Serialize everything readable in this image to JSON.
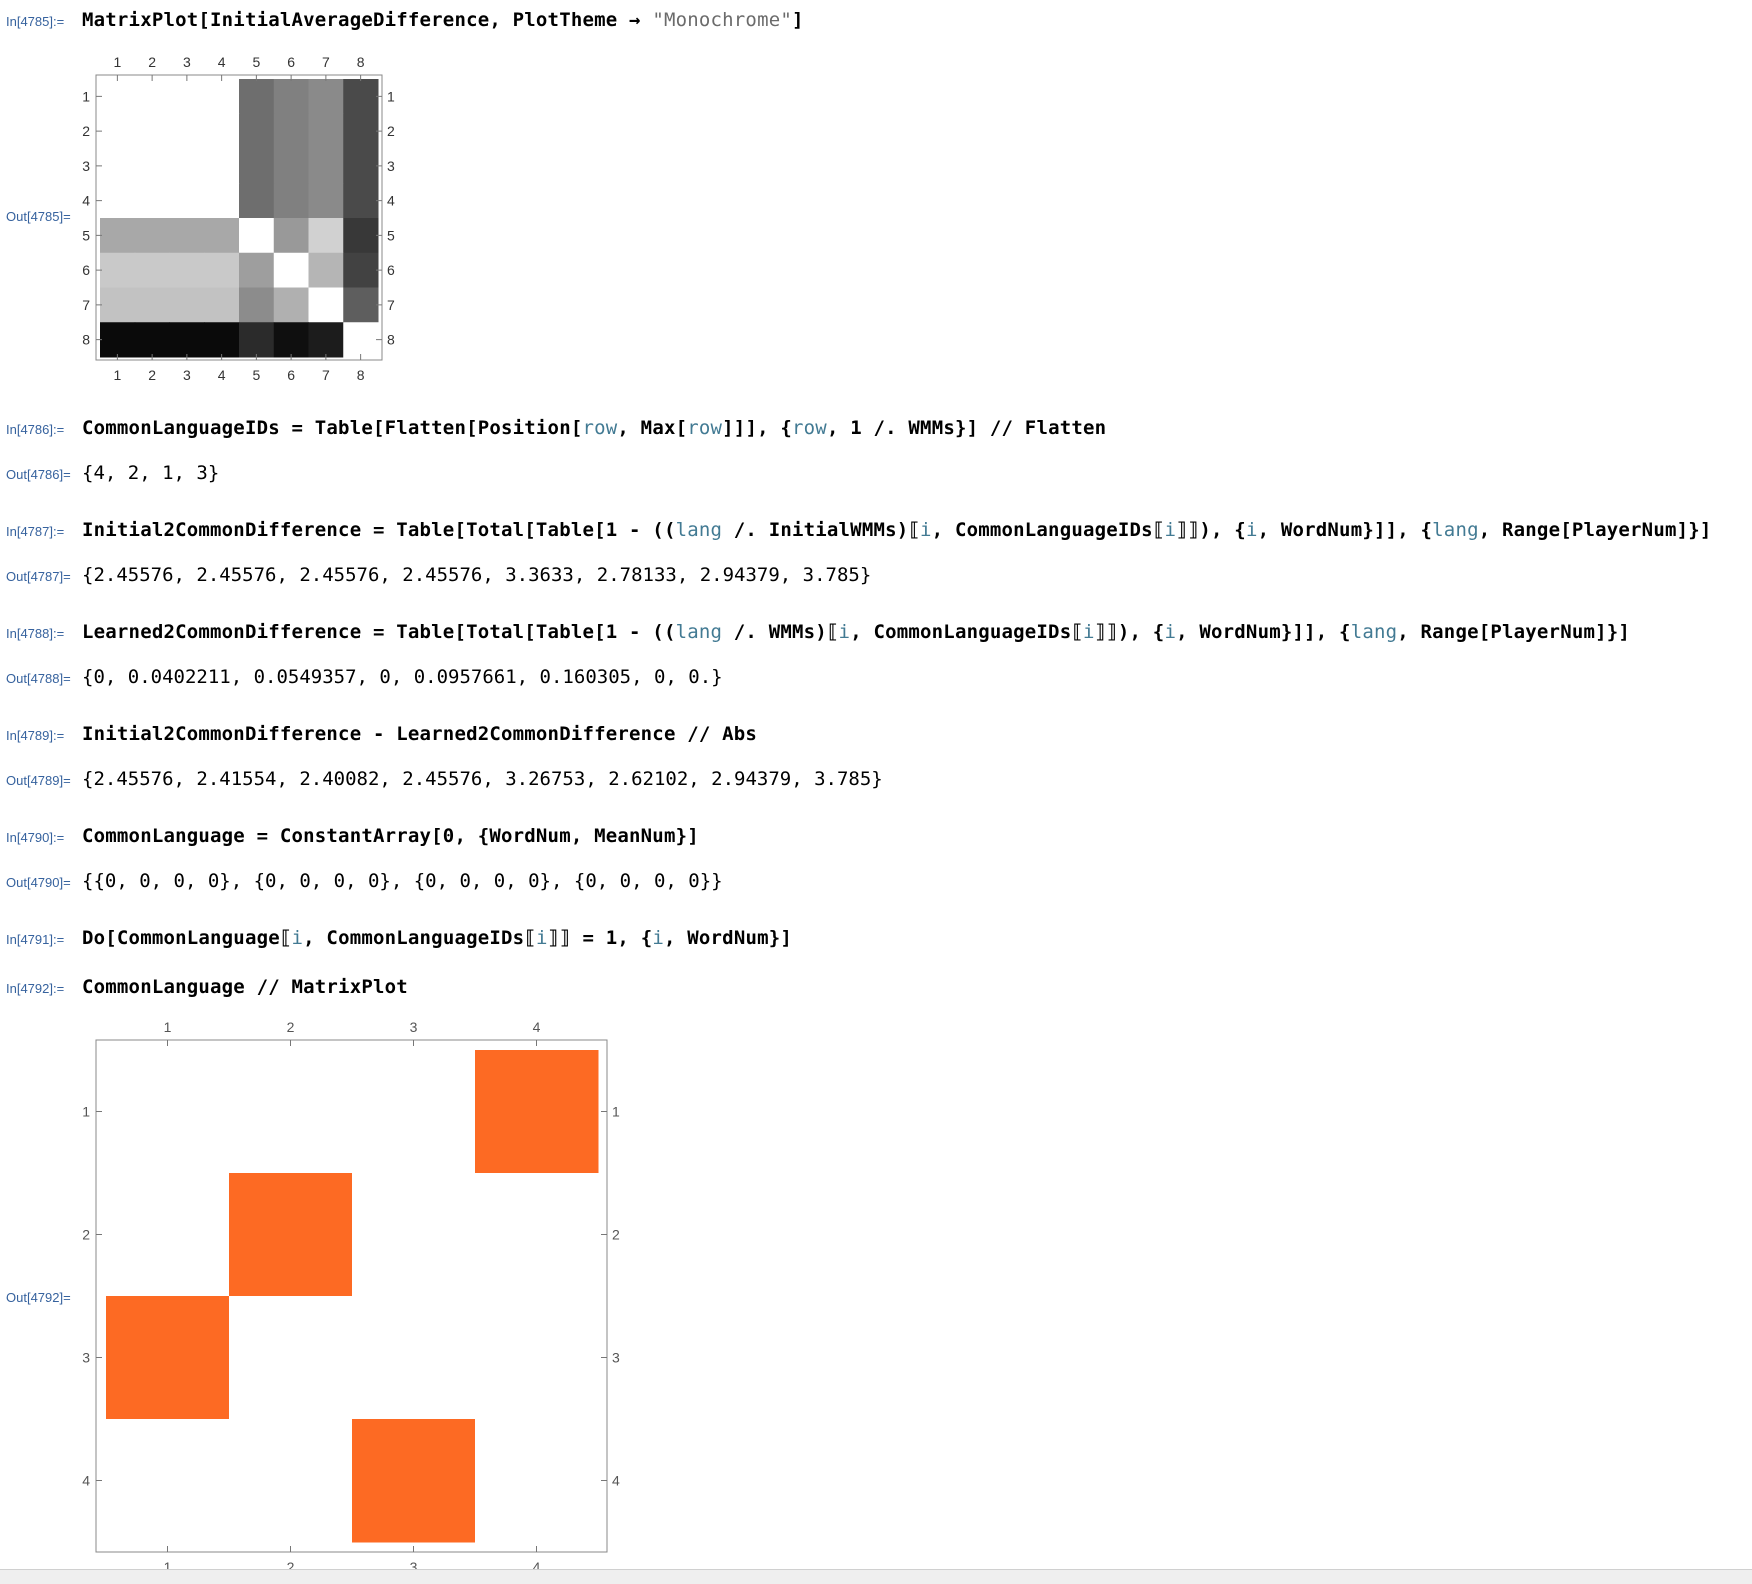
{
  "cells": [
    {
      "in_label": "In[4785]:=",
      "code": [
        {
          "t": "MatrixPlot[InitialAverageDifference, PlotTheme → "
        },
        {
          "t": "\"Monochrome\"",
          "s": 1
        },
        {
          "t": "]"
        }
      ],
      "out_label": "Out[4785]="
    },
    {
      "in_label": "In[4786]:=",
      "code": [
        {
          "t": "CommonLanguageIDs = Table[Flatten[Position["
        },
        {
          "t": "row",
          "v": 1
        },
        {
          "t": ", Max["
        },
        {
          "t": "row",
          "v": 1
        },
        {
          "t": "]]], {"
        },
        {
          "t": "row",
          "v": 1
        },
        {
          "t": ", 1 /. WMMs}] // Flatten"
        }
      ],
      "out_label": "Out[4786]=",
      "output": "{4, 2, 1, 3}"
    },
    {
      "in_label": "In[4787]:=",
      "code": [
        {
          "t": "Initial2CommonDifference = Table[Total[Table[1 - (("
        },
        {
          "t": "lang",
          "v": 1
        },
        {
          "t": " /. InitialWMMs)⟦"
        },
        {
          "t": "i",
          "v": 1
        },
        {
          "t": ", CommonLanguageIDs⟦"
        },
        {
          "t": "i",
          "v": 1
        },
        {
          "t": "⟧⟧), {"
        },
        {
          "t": "i",
          "v": 1
        },
        {
          "t": ", WordNum}]], {"
        },
        {
          "t": "lang",
          "v": 1
        },
        {
          "t": ", Range[PlayerNum]}]"
        }
      ],
      "out_label": "Out[4787]=",
      "output": "{2.45576, 2.45576, 2.45576, 2.45576, 3.3633, 2.78133, 2.94379, 3.785}"
    },
    {
      "in_label": "In[4788]:=",
      "code": [
        {
          "t": "Learned2CommonDifference = Table[Total[Table[1 - (("
        },
        {
          "t": "lang",
          "v": 1
        },
        {
          "t": " /. WMMs)⟦"
        },
        {
          "t": "i",
          "v": 1
        },
        {
          "t": ", CommonLanguageIDs⟦"
        },
        {
          "t": "i",
          "v": 1
        },
        {
          "t": "⟧⟧), {"
        },
        {
          "t": "i",
          "v": 1
        },
        {
          "t": ", WordNum}]], {"
        },
        {
          "t": "lang",
          "v": 1
        },
        {
          "t": ", Range[PlayerNum]}]"
        }
      ],
      "out_label": "Out[4788]=",
      "output": "{0, 0.0402211, 0.0549357, 0, 0.0957661, 0.160305, 0, 0.}"
    },
    {
      "in_label": "In[4789]:=",
      "code": [
        {
          "t": "Initial2CommonDifference - Learned2CommonDifference // Abs"
        }
      ],
      "out_label": "Out[4789]=",
      "output": "{2.45576, 2.41554, 2.40082, 2.45576, 3.26753, 2.62102, 2.94379, 3.785}"
    },
    {
      "in_label": "In[4790]:=",
      "code": [
        {
          "t": "CommonLanguage = ConstantArray[0, {WordNum, MeanNum}]"
        }
      ],
      "out_label": "Out[4790]=",
      "output": "{{0, 0, 0, 0}, {0, 0, 0, 0}, {0, 0, 0, 0}, {0, 0, 0, 0}}"
    },
    {
      "in_label": "In[4791]:=",
      "code": [
        {
          "t": "Do[CommonLanguage⟦"
        },
        {
          "t": "i",
          "v": 1
        },
        {
          "t": ", CommonLanguageIDs⟦"
        },
        {
          "t": "i",
          "v": 1
        },
        {
          "t": "⟧⟧ = 1, {"
        },
        {
          "t": "i",
          "v": 1
        },
        {
          "t": ", WordNum}]"
        }
      ]
    },
    {
      "in_label": "In[4792]:=",
      "code": [
        {
          "t": "CommonLanguage // MatrixPlot"
        }
      ],
      "out_label": "Out[4792]="
    }
  ],
  "chart_data": [
    {
      "type": "heatmap",
      "rows": [
        "1",
        "2",
        "3",
        "4",
        "5",
        "6",
        "7",
        "8"
      ],
      "columns": [
        "1",
        "2",
        "3",
        "4",
        "5",
        "6",
        "7",
        "8"
      ],
      "gray_levels": [
        [
          1.0,
          1.0,
          1.0,
          1.0,
          0.43,
          0.5,
          0.54,
          0.29
        ],
        [
          1.0,
          1.0,
          1.0,
          1.0,
          0.43,
          0.5,
          0.54,
          0.29
        ],
        [
          1.0,
          1.0,
          1.0,
          1.0,
          0.43,
          0.5,
          0.54,
          0.29
        ],
        [
          1.0,
          1.0,
          1.0,
          1.0,
          0.43,
          0.5,
          0.54,
          0.29
        ],
        [
          0.66,
          0.66,
          0.66,
          0.66,
          1.0,
          0.6,
          0.82,
          0.22
        ],
        [
          0.79,
          0.79,
          0.79,
          0.79,
          0.62,
          1.0,
          0.71,
          0.26
        ],
        [
          0.76,
          0.76,
          0.76,
          0.76,
          0.55,
          0.69,
          1.0,
          0.37
        ],
        [
          0.04,
          0.04,
          0.04,
          0.04,
          0.17,
          0.06,
          0.11,
          1.0
        ]
      ],
      "theme": "Monochrome"
    },
    {
      "type": "heatmap",
      "rows": [
        "1",
        "2",
        "3",
        "4"
      ],
      "columns": [
        "1",
        "2",
        "3",
        "4"
      ],
      "values": [
        [
          0,
          0,
          0,
          1
        ],
        [
          0,
          1,
          0,
          0
        ],
        [
          1,
          0,
          0,
          0
        ],
        [
          0,
          0,
          1,
          0
        ]
      ],
      "on_color": "#fd6a23",
      "off_color": "#ffffff"
    }
  ]
}
